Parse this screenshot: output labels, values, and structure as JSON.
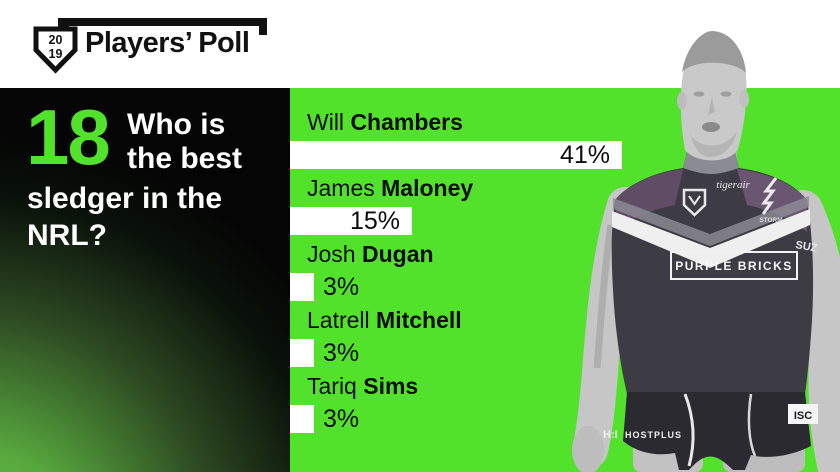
{
  "header": {
    "title": "Players’ Poll",
    "shield_year_top": "20",
    "shield_year_bottom": "19"
  },
  "question": {
    "number": "18",
    "lines": [
      "Who is",
      "the best",
      "sledger in the",
      "NRL?"
    ]
  },
  "chart_data": {
    "type": "bar",
    "orientation": "horizontal",
    "title": "Who is the best sledger in the NRL?",
    "poll_number": 18,
    "unit": "%",
    "categories": [
      "Will Chambers",
      "James Maloney",
      "Josh Dugan",
      "Latrell Mitchell",
      "Tariq Sims"
    ],
    "values": [
      41,
      15,
      3,
      3,
      3
    ],
    "players": [
      {
        "first": "Will",
        "last": "Chambers",
        "value": 41,
        "label": "41%"
      },
      {
        "first": "James",
        "last": "Maloney",
        "value": 15,
        "label": "15%"
      },
      {
        "first": "Josh",
        "last": "Dugan",
        "value": 3,
        "label": "3%"
      },
      {
        "first": "Latrell",
        "last": "Mitchell",
        "value": 3,
        "label": "3%"
      },
      {
        "first": "Tariq",
        "last": "Sims",
        "value": 3,
        "label": "3%"
      }
    ],
    "bar_color": "#ffffff",
    "background": "#53e22c",
    "legend": "none",
    "grid": false
  },
  "photo": {
    "description": "NRL player in dark jersey, grayscale",
    "sponsors": {
      "chest": "tigerair",
      "chest_box": "PURPLE BRICKS",
      "sleeve": "SUZ",
      "shorts": "HOSTPLUS",
      "shorts_mark": "H:I",
      "patch": "ISC",
      "team_badge": "STORM"
    }
  },
  "colors": {
    "accent_green": "#53e22c",
    "panel_black": "#050505",
    "bar_white": "#ffffff",
    "text_black": "#0c0c0c"
  }
}
